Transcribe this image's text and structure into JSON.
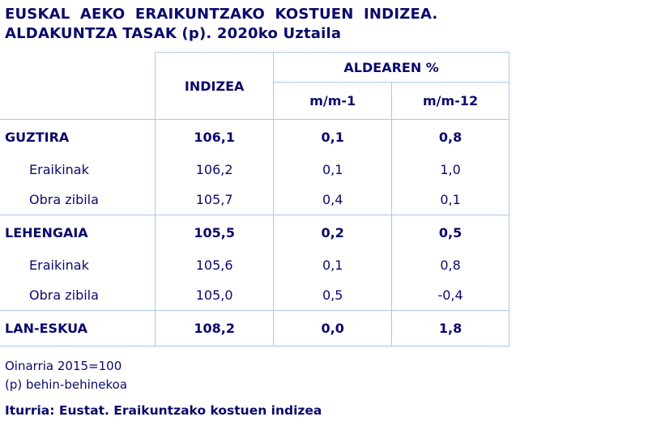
{
  "title": {
    "line1": "EUSKAL  AEKO   ERAIKUNTZAKO  KOSTUEN  INDIZEA.",
    "line2": "ALDAKUNTZA TASAK (p). 2020ko Uztaila"
  },
  "table": {
    "col_index": "INDIZEA",
    "col_group": "ALDEAREN %",
    "col_m1": "m/m-1",
    "col_m12": "m/m-12",
    "rows": [
      {
        "label": "GUZTIRA",
        "index": "106,1",
        "m1": "0,1",
        "m12": "0,8"
      },
      {
        "label": "Eraikinak",
        "index": "106,2",
        "m1": "0,1",
        "m12": "1,0"
      },
      {
        "label": "Obra zibila",
        "index": "105,7",
        "m1": "0,4",
        "m12": "0,1"
      },
      {
        "label": "LEHENGAIA",
        "index": "105,5",
        "m1": "0,2",
        "m12": "0,5"
      },
      {
        "label": "Eraikinak",
        "index": "105,6",
        "m1": "0,1",
        "m12": "0,8"
      },
      {
        "label": "Obra zibila",
        "index": "105,0",
        "m1": "0,5",
        "m12": "-0,4"
      },
      {
        "label": "LAN-ESKUA",
        "index": "108,2",
        "m1": "0,0",
        "m12": "1,8"
      }
    ]
  },
  "notes": {
    "base": "Oinarria 2015=100",
    "provisional": "(p) behin-behinekoa"
  },
  "source": "Iturria: Eustat. Eraikuntzako kostuen indizea",
  "colors": {
    "text": "#0a0a6b",
    "border": "#a9c9ea"
  }
}
